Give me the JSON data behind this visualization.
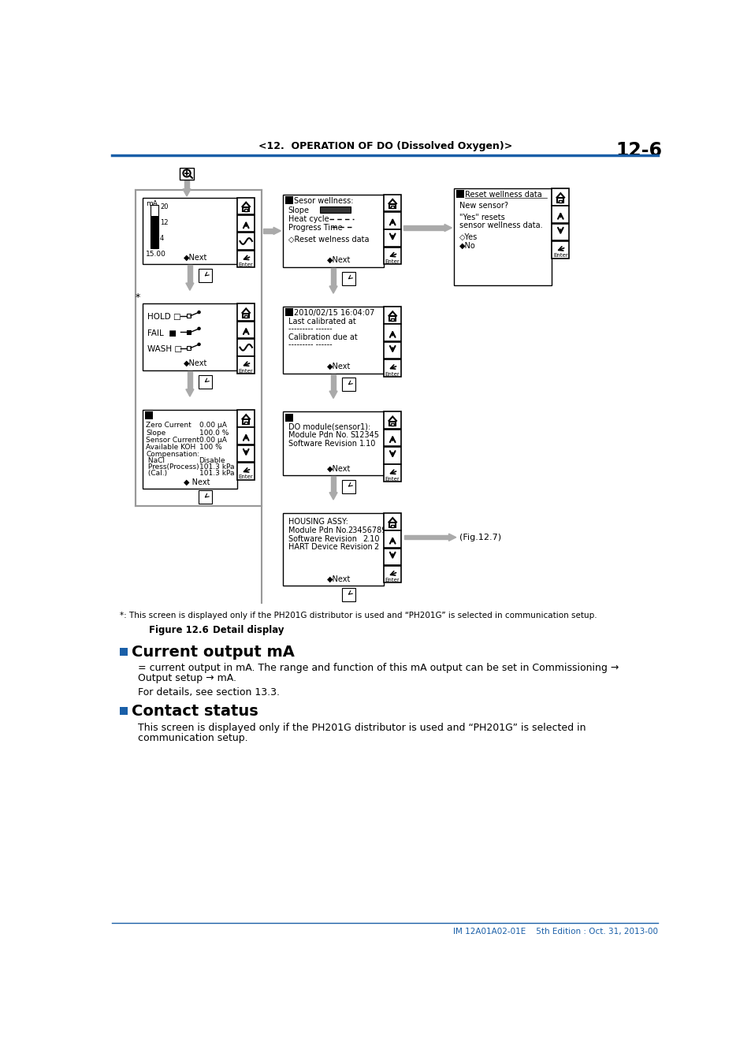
{
  "page_header_text": "<12.  OPERATION OF DO (Dissolved Oxygen)>",
  "page_number": "12-6",
  "header_line_color": "#1a5fa8",
  "bg_color": "#ffffff",
  "section1_title": "Current output mA",
  "section1_body1": "= current output in mA. The range and function of this mA output can be set in Commissioning →",
  "section1_body2": "Output setup → mA.",
  "section1_body3": "For details, see section 13.3.",
  "section2_title": "Contact status",
  "section2_body1": "This screen is displayed only if the PH201G distributor is used and “PH201G” is selected in",
  "section2_body2": "communication setup.",
  "footer_text": "IM 12A01A02-01E    5th Edition : Oct. 31, 2013-00",
  "caption_note": "*: This screen is displayed only if the PH201G distributor is used and “PH201G” is selected in communication setup.",
  "figure_label": "Figure 12.6",
  "figure_caption": "Detail display",
  "fig_ref": "(Fig.12.7)",
  "arrow_color": "#aaaaaa",
  "outer_box_color": "#999999"
}
